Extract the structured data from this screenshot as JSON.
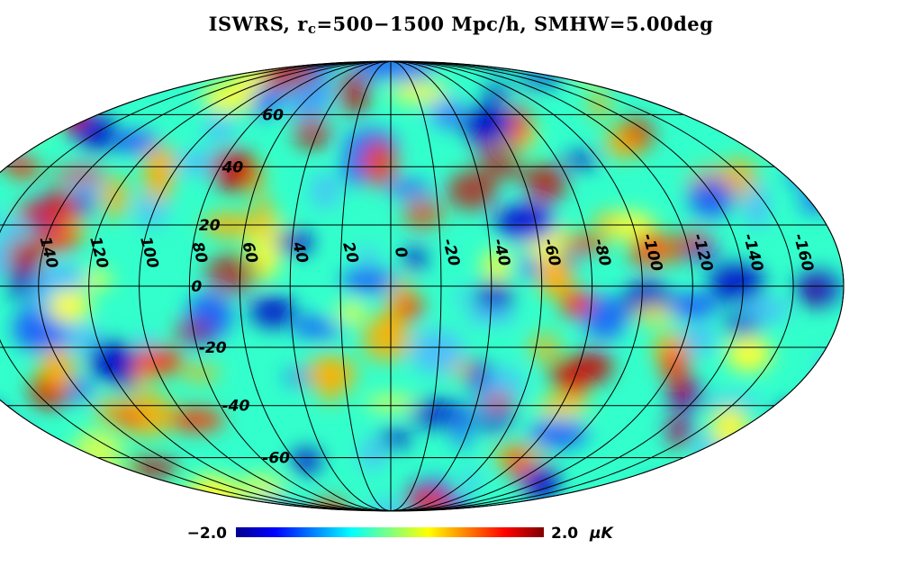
{
  "title": {
    "prefix": "ISWRS, r",
    "subscript": "c",
    "suffix": "=500−1500 Mpc/h, SMHW=5.00deg"
  },
  "projection": "mollweide",
  "graticule": {
    "longitude_step_deg": 20,
    "latitude_lines_deg": [
      60,
      40,
      20,
      0,
      -20,
      -40,
      -60
    ]
  },
  "longitude_labels": [
    "140",
    "120",
    "100",
    "80",
    "60",
    "40",
    "20",
    "0",
    "-20",
    "-40",
    "-60",
    "-80",
    "-100",
    "-120",
    "-140",
    "-160"
  ],
  "latitude_labels": [
    "60",
    "40",
    "20",
    "0",
    "-20",
    "-40",
    "-60"
  ],
  "colorbar": {
    "min_label": "−2.0",
    "max_label": "2.0",
    "unit": "μK",
    "min": -2.0,
    "max": 2.0,
    "colors": [
      "#00008f",
      "#0000ff",
      "#0080ff",
      "#00ffff",
      "#80ff80",
      "#ffff00",
      "#ff8000",
      "#ff0000",
      "#800000"
    ]
  }
}
